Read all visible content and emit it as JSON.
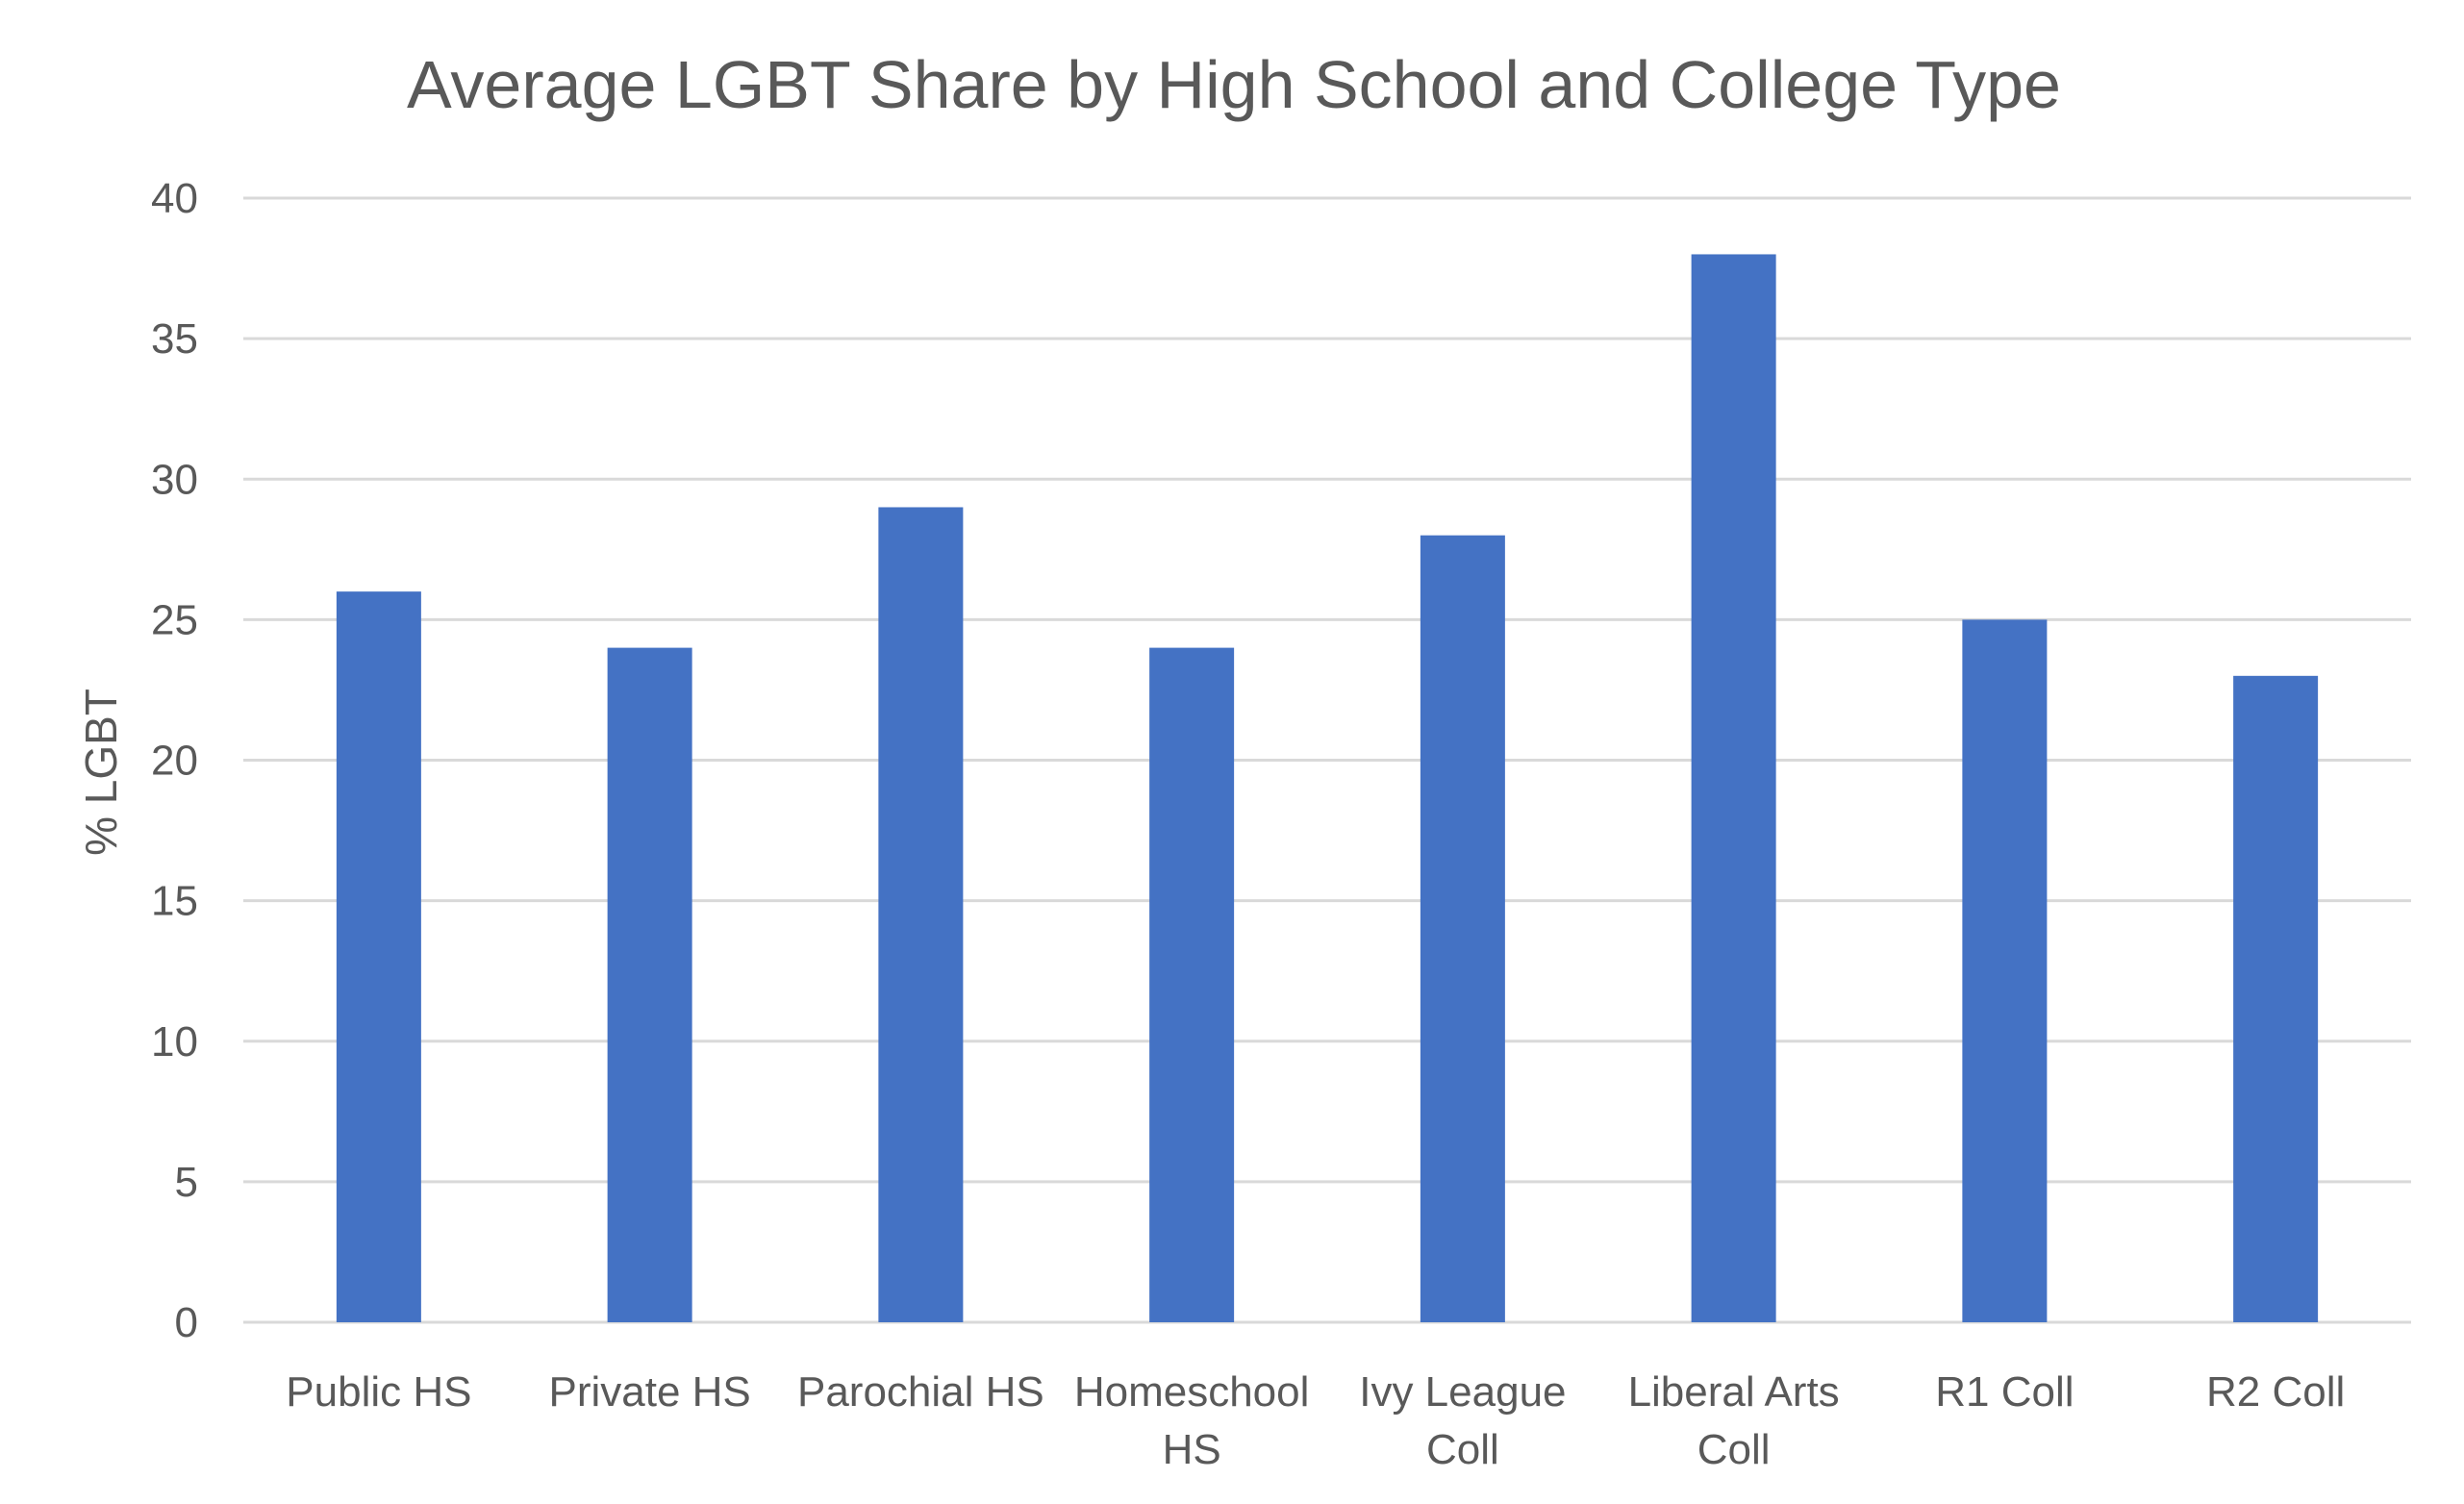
{
  "chart_data": {
    "type": "bar",
    "title": "Average LGBT Share by High School and College Type",
    "xlabel": "",
    "ylabel": "% LGBT",
    "categories": [
      [
        "Public HS"
      ],
      [
        "Private HS"
      ],
      [
        "Parochial HS"
      ],
      [
        "Homeschool",
        "HS"
      ],
      [
        "Ivy League",
        "Coll"
      ],
      [
        "Liberal Arts",
        "Coll"
      ],
      [
        "R1 Coll"
      ],
      [
        "R2 Coll"
      ]
    ],
    "values": [
      26,
      24,
      29,
      24,
      28,
      38,
      25,
      23
    ],
    "ylim": [
      0,
      40
    ],
    "yticks": [
      0,
      5,
      10,
      15,
      20,
      25,
      30,
      35,
      40
    ],
    "grid": true,
    "legend": "none",
    "colors": {
      "bar": "#4472c4",
      "gridline": "#d9d9d9",
      "text": "#595959"
    }
  }
}
